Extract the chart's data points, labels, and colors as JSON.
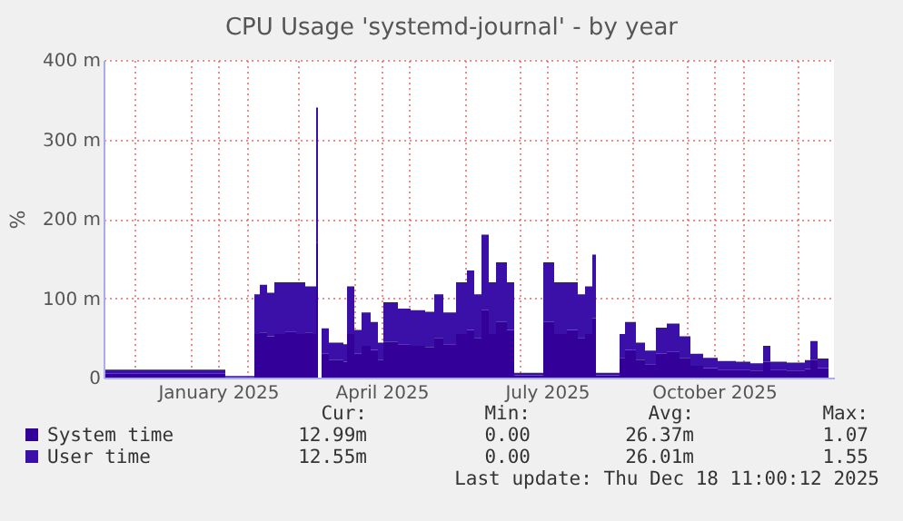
{
  "chart_data": {
    "type": "area",
    "title": "CPU Usage 'systemd-journal' - by year",
    "ylabel": "%",
    "stacked": true,
    "grid": true,
    "legend": "bottom",
    "x": [
      "2024-11-15",
      "2024-12-15",
      "2025-01-18",
      "2025-01-20",
      "2025-02-03",
      "2025-02-05",
      "2025-02-08",
      "2025-02-12",
      "2025-02-16",
      "2025-02-22",
      "2025-02-28",
      "2025-03-05",
      "2025-03-09",
      "2025-03-11",
      "2025-03-12",
      "2025-03-14",
      "2025-03-18",
      "2025-03-26",
      "2025-03-28",
      "2025-04-01",
      "2025-04-05",
      "2025-04-10",
      "2025-04-14",
      "2025-04-17",
      "2025-04-25",
      "2025-05-02",
      "2025-05-10",
      "2025-05-15",
      "2025-05-20",
      "2025-05-27",
      "2025-06-02",
      "2025-06-06",
      "2025-06-10",
      "2025-06-14",
      "2025-06-18",
      "2025-06-24",
      "2025-06-28",
      "2025-07-12",
      "2025-07-14",
      "2025-07-20",
      "2025-07-27",
      "2025-08-02",
      "2025-08-06",
      "2025-08-10",
      "2025-08-12",
      "2025-08-23",
      "2025-08-25",
      "2025-08-28",
      "2025-09-03",
      "2025-09-08",
      "2025-09-14",
      "2025-09-20",
      "2025-09-27",
      "2025-10-03",
      "2025-10-10",
      "2025-10-18",
      "2025-10-28",
      "2025-11-05",
      "2025-11-12",
      "2025-11-16",
      "2025-11-25",
      "2025-12-05",
      "2025-12-08",
      "2025-12-12",
      "2025-12-18"
    ],
    "series": [
      {
        "name": "System time",
        "color": "#330099",
        "values": [
          5,
          5,
          5,
          1,
          1,
          55,
          57,
          52,
          55,
          58,
          55,
          57,
          55,
          170,
          0,
          30,
          22,
          20,
          55,
          30,
          40,
          35,
          22,
          45,
          42,
          40,
          38,
          50,
          42,
          55,
          60,
          50,
          85,
          55,
          70,
          60,
          3,
          3,
          70,
          55,
          60,
          50,
          55,
          75,
          3,
          3,
          25,
          35,
          22,
          17,
          30,
          33,
          25,
          15,
          12,
          10,
          10,
          9,
          20,
          10,
          9,
          11,
          22,
          12,
          13
        ]
      },
      {
        "name": "User time",
        "color": "#3a10a8",
        "values": [
          5,
          5,
          5,
          1,
          1,
          50,
          60,
          55,
          65,
          62,
          65,
          58,
          60,
          170,
          0,
          32,
          22,
          22,
          60,
          30,
          42,
          35,
          22,
          50,
          45,
          45,
          45,
          55,
          40,
          65,
          75,
          55,
          95,
          65,
          75,
          60,
          3,
          3,
          75,
          65,
          60,
          55,
          60,
          80,
          3,
          3,
          30,
          35,
          22,
          17,
          33,
          35,
          27,
          15,
          13,
          11,
          10,
          9,
          20,
          10,
          10,
          11,
          24,
          12,
          12
        ]
      }
    ],
    "xlim": [
      "2024-11-14",
      "2025-12-21"
    ],
    "xticks": [
      {
        "value": "2024-12-01",
        "label": null
      },
      {
        "value": "2025-01-01",
        "label": null
      },
      {
        "value": "2025-01-16",
        "label": "January 2025"
      },
      {
        "value": "2025-02-01",
        "label": null
      },
      {
        "value": "2025-03-01",
        "label": null
      },
      {
        "value": "2025-04-01",
        "label": null
      },
      {
        "value": "2025-04-16",
        "label": "April 2025"
      },
      {
        "value": "2025-05-01",
        "label": null
      },
      {
        "value": "2025-06-01",
        "label": null
      },
      {
        "value": "2025-07-01",
        "label": null
      },
      {
        "value": "2025-07-16",
        "label": "July 2025"
      },
      {
        "value": "2025-08-01",
        "label": null
      },
      {
        "value": "2025-09-01",
        "label": null
      },
      {
        "value": "2025-10-01",
        "label": null
      },
      {
        "value": "2025-10-16",
        "label": "October 2025"
      },
      {
        "value": "2025-11-01",
        "label": null
      },
      {
        "value": "2025-12-01",
        "label": null
      }
    ],
    "ylim": [
      0,
      400
    ],
    "yticks": [
      0,
      {
        "value": 100,
        "label": "100 m"
      },
      {
        "value": 200,
        "label": "200 m"
      },
      {
        "value": 300,
        "label": "300 m"
      },
      {
        "value": 400,
        "label": "400 m"
      }
    ],
    "annotations": [
      "Cur:",
      "Min:",
      "Avg:",
      "Max:",
      "12.99m",
      "0.00",
      "26.37m",
      "1.07",
      "12.55m",
      "0.00",
      "26.01m",
      "1.55",
      "Last update: Thu Dec 18 11:00:12 2025"
    ]
  }
}
